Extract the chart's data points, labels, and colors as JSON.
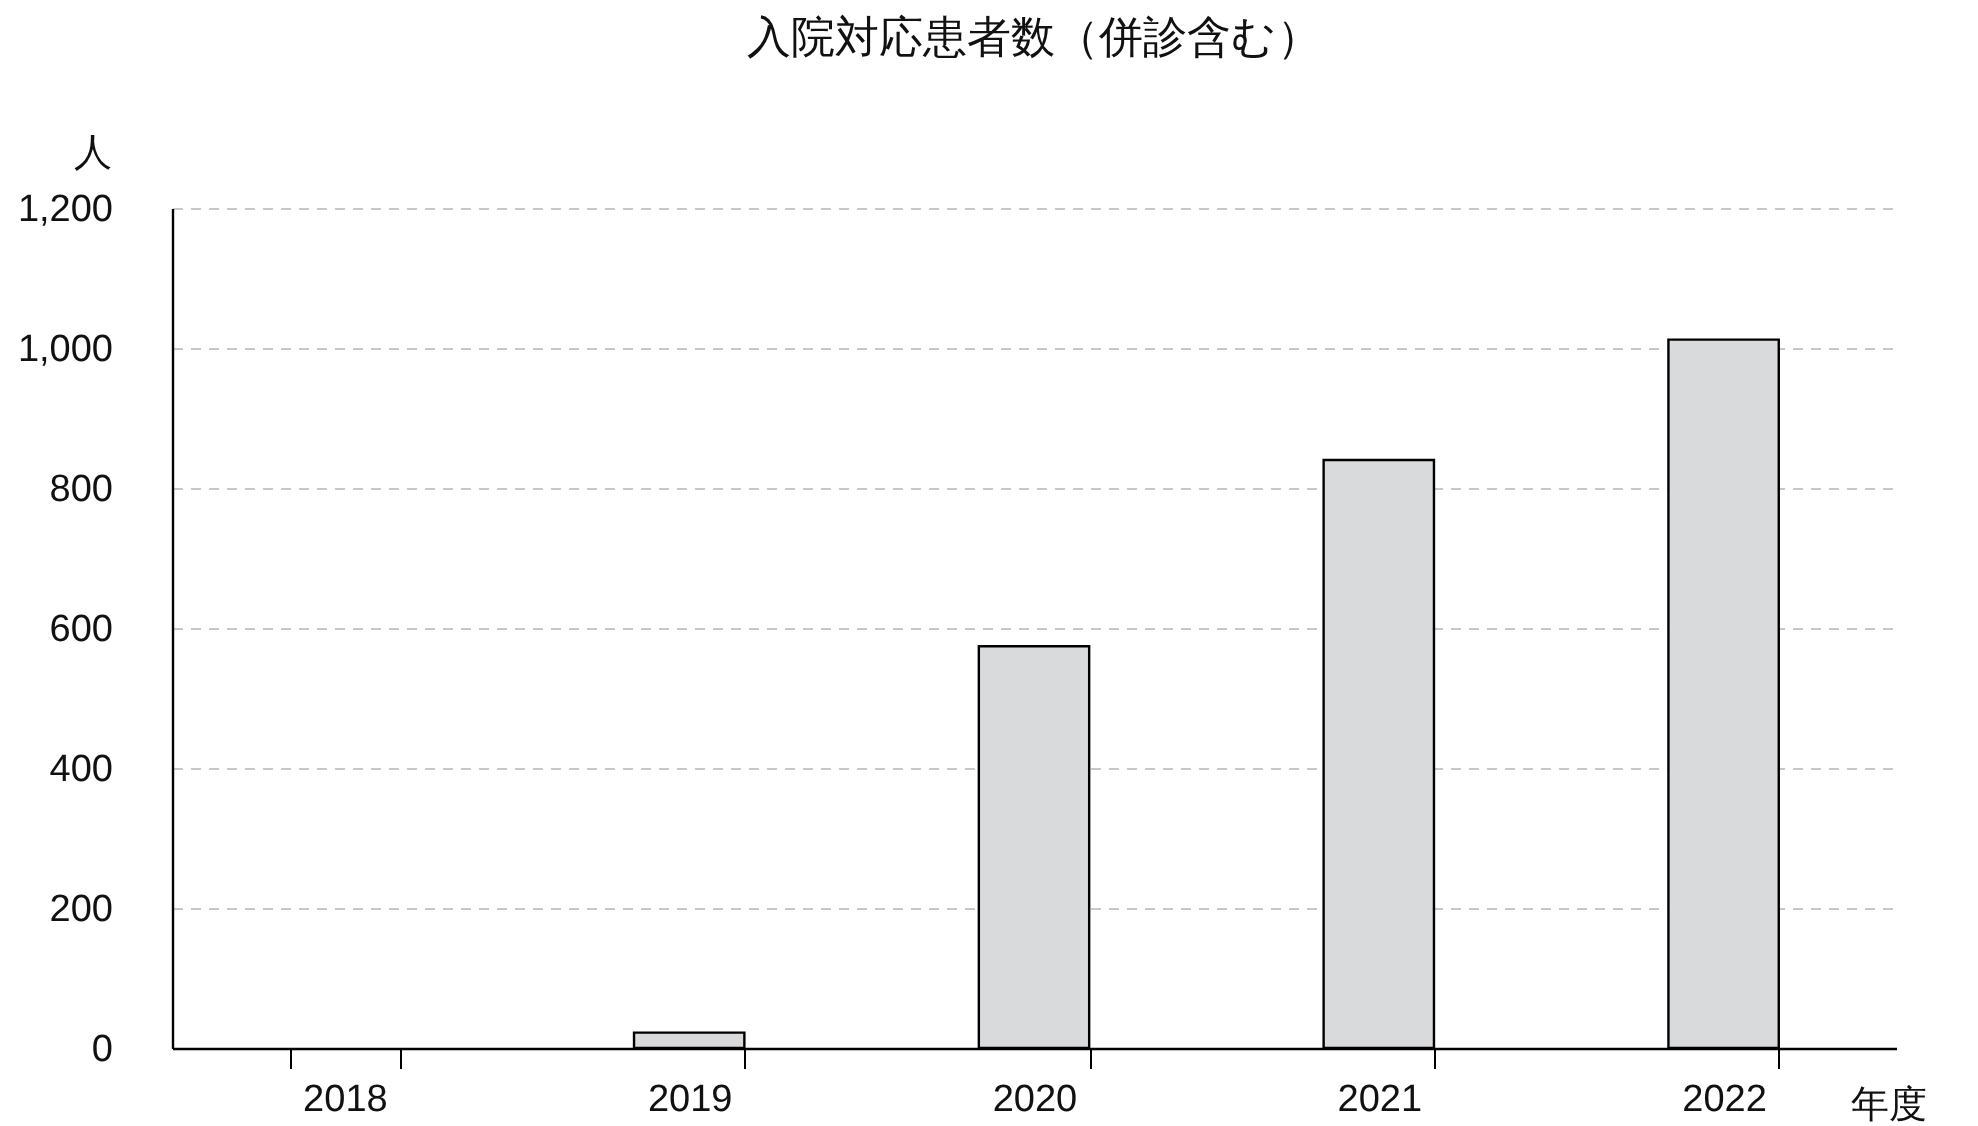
{
  "chart_data": {
    "type": "bar",
    "title": "入院対応患者数（併診含む）",
    "xlabel": "年度",
    "ylabel": "人",
    "categories": [
      "2018",
      "2019",
      "2020",
      "2021",
      "2022"
    ],
    "values": [
      0,
      22,
      574,
      840,
      1012
    ],
    "color": "#d9dadb",
    "ylim": [
      0,
      1200
    ],
    "yticks": [
      0,
      200,
      400,
      600,
      800,
      {
        "value": 1000,
        "label": "1,000"
      },
      {
        "value": 1200,
        "label": "1,200"
      }
    ],
    "grid": "y"
  }
}
